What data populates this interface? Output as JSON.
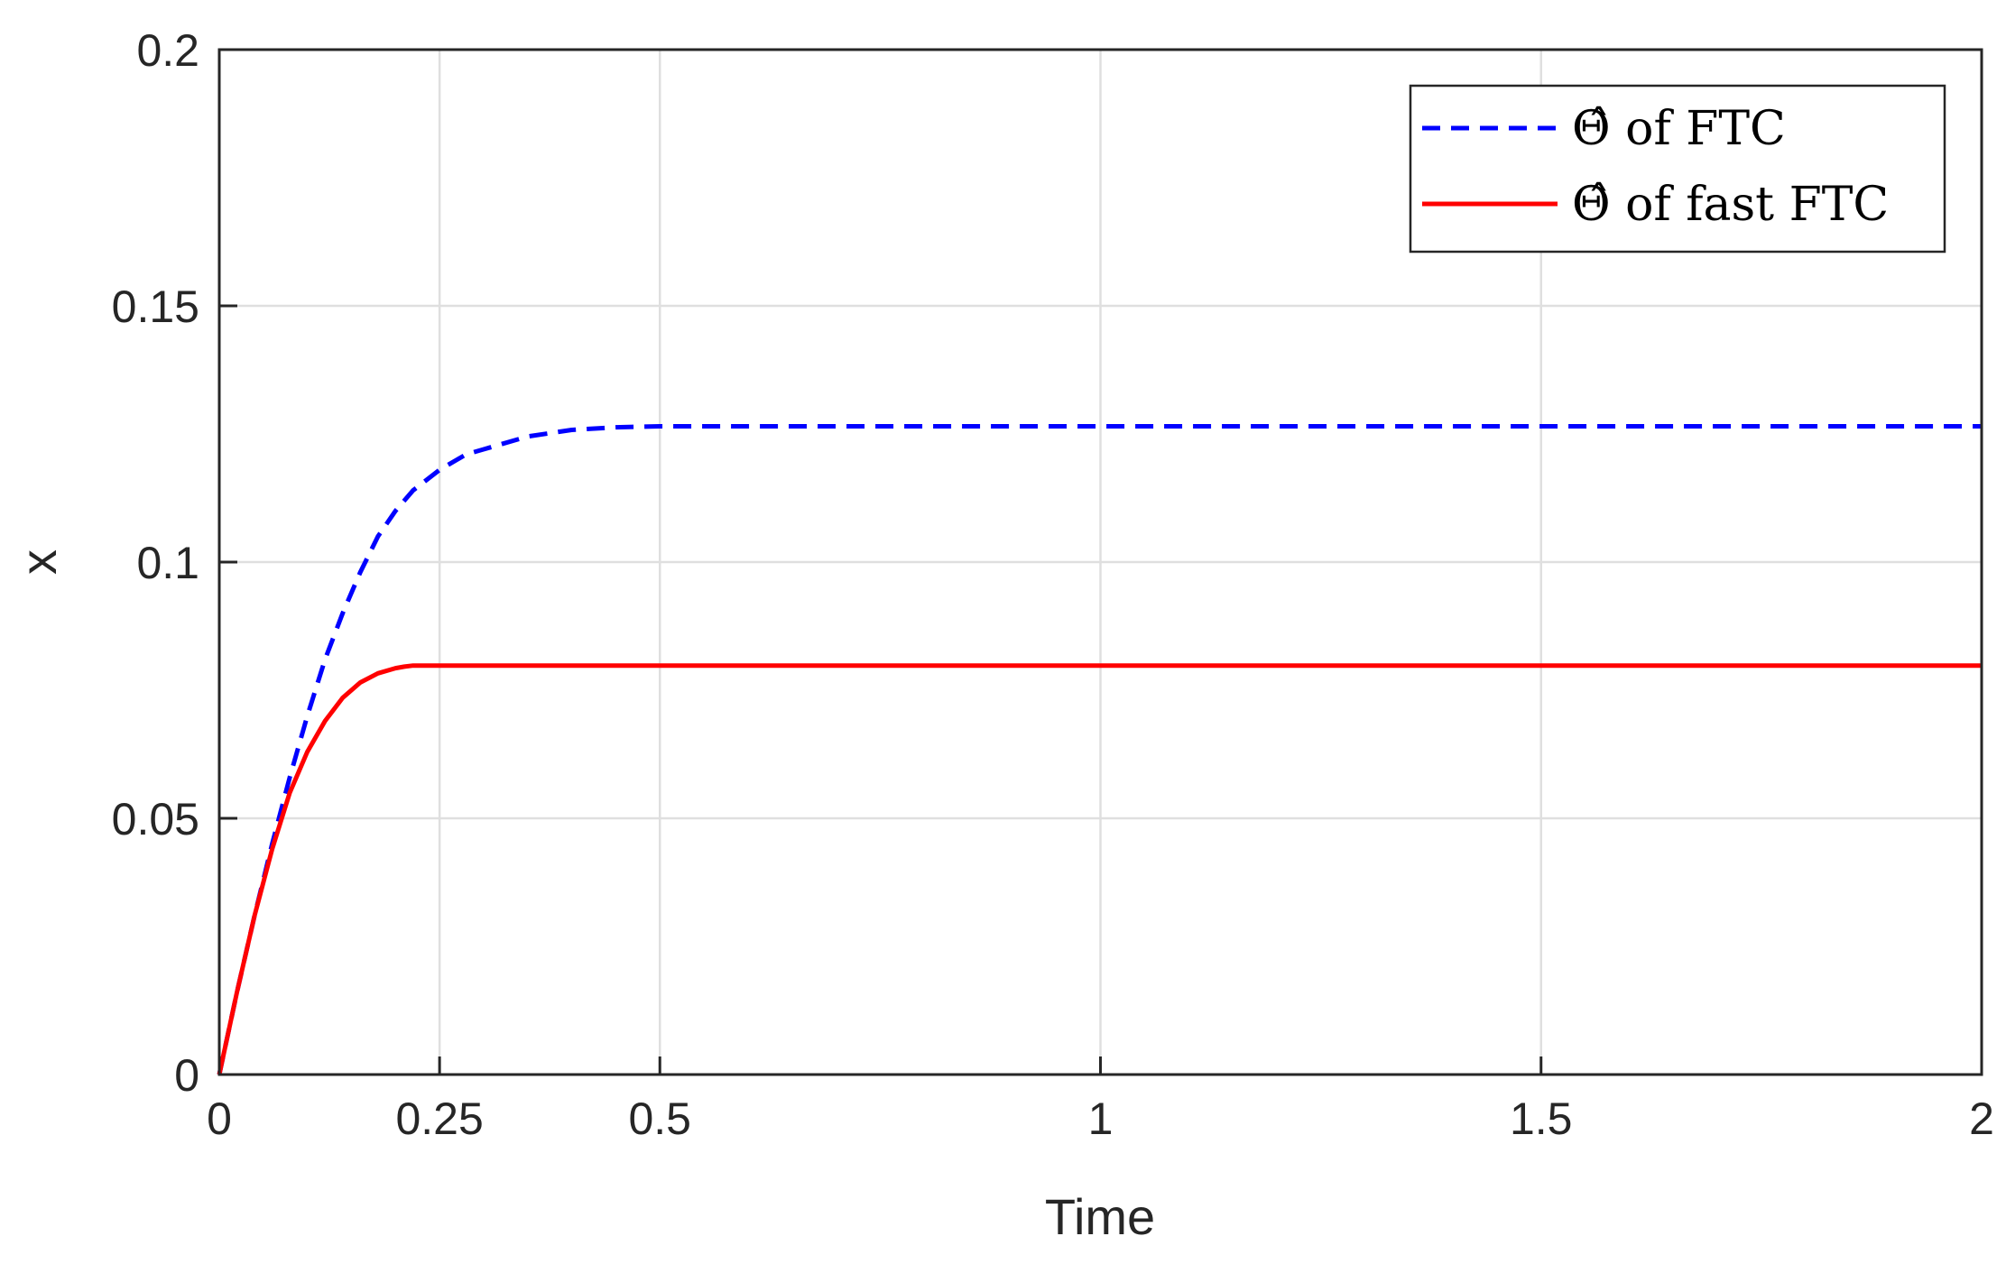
{
  "chart_data": {
    "type": "line",
    "xlabel": "Time",
    "ylabel": "x",
    "xlim": [
      0,
      2
    ],
    "ylim": [
      0,
      0.2
    ],
    "xticks": [
      0,
      0.25,
      0.5,
      1,
      1.5,
      2
    ],
    "xtick_labels": [
      "0",
      "0.25",
      "0.5",
      "1",
      "1.5",
      "2"
    ],
    "yticks": [
      0,
      0.05,
      0.1,
      0.15,
      0.2
    ],
    "ytick_labels": [
      "0",
      "0.05",
      "0.1",
      "0.15",
      "0.2"
    ],
    "grid": true,
    "legend_position": "top-right",
    "series": [
      {
        "name": "Θ̂ of FTC",
        "name_parts": {
          "symbol": "Θ̂",
          "text": " of FTC"
        },
        "color": "#0000ff",
        "style": "dashed",
        "x": [
          0,
          0.02,
          0.04,
          0.06,
          0.08,
          0.1,
          0.12,
          0.14,
          0.16,
          0.18,
          0.2,
          0.22,
          0.25,
          0.28,
          0.3,
          0.35,
          0.4,
          0.45,
          0.5,
          0.6,
          0.8,
          1,
          1.5,
          2
        ],
        "y": [
          0,
          0.016,
          0.031,
          0.045,
          0.058,
          0.07,
          0.081,
          0.09,
          0.098,
          0.105,
          0.11,
          0.114,
          0.118,
          0.121,
          0.122,
          0.1245,
          0.1258,
          0.1263,
          0.1265,
          0.1265,
          0.1265,
          0.1265,
          0.1265,
          0.1265
        ]
      },
      {
        "name": "Θ̂ of fast FTC",
        "name_parts": {
          "symbol": "Θ̂",
          "text": " of fast FTC"
        },
        "color": "#ff0000",
        "style": "solid",
        "x": [
          0,
          0.02,
          0.04,
          0.06,
          0.08,
          0.1,
          0.12,
          0.14,
          0.16,
          0.18,
          0.2,
          0.21,
          0.22,
          0.25,
          0.5,
          1,
          1.5,
          2
        ],
        "y": [
          0,
          0.016,
          0.031,
          0.044,
          0.055,
          0.063,
          0.069,
          0.0735,
          0.0765,
          0.0783,
          0.0793,
          0.0796,
          0.0798,
          0.0798,
          0.0798,
          0.0798,
          0.0798,
          0.0798
        ]
      }
    ]
  }
}
